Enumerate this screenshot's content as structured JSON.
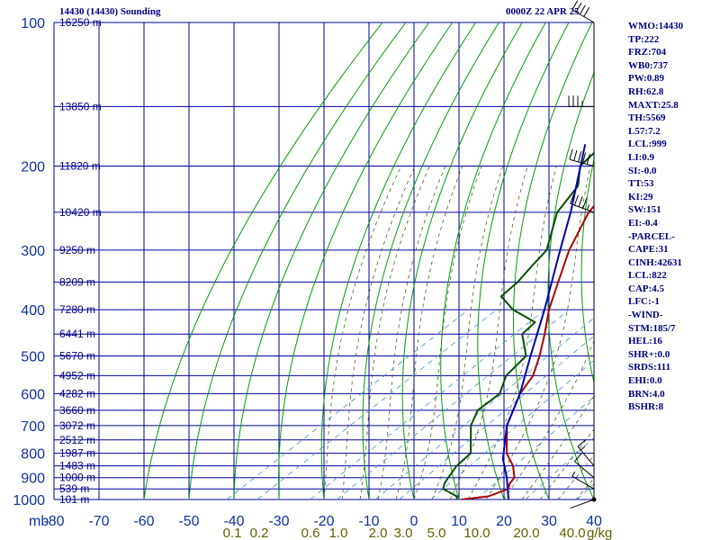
{
  "header": {
    "station_title": "14430 (14430) Sounding",
    "valid_time": "0000Z 22 APR 25"
  },
  "indices": [
    "WMO:14430",
    "TP:222",
    "FRZ:704",
    "WB0:737",
    "PW:0.89",
    "RH:62.8",
    "MAXT:25.8",
    "TH:5569",
    "L57:7.2",
    "LCL:999",
    "LI:0.9",
    "SI:-0.0",
    "TT:53",
    "KI:29",
    "SW:151",
    "EI:-0.4",
    "-PARCEL-",
    "CAPE:31",
    "CINH:42631",
    "LCL:822",
    "CAP:4.5",
    "LFC:-1",
    "-WIND-",
    "STM:185/7",
    "HEL:16",
    "SHR+:0.0",
    "SRDS:111",
    "EHI:0.0",
    "BRN:4.0",
    "BSHR:8"
  ],
  "chart_data": {
    "type": "line",
    "title": "14430 (14430) Sounding",
    "subtitle": "0000Z 22 APR 25",
    "xlabel": "",
    "ylabel": "mb",
    "pressure_axis": {
      "unit": "mb",
      "ticks": [
        100,
        200,
        300,
        400,
        500,
        600,
        700,
        800,
        900,
        1000
      ],
      "log_scale": true,
      "ylim": [
        100,
        1000
      ]
    },
    "temperature_axis": {
      "ticks": [
        -80,
        -70,
        -60,
        -50,
        -40,
        -30,
        -20,
        -10,
        0,
        10,
        20,
        30,
        40
      ],
      "xlim": [
        -80,
        40
      ]
    },
    "mixing_ratio_ticks": [
      "0.1",
      "0.2",
      "0.6",
      "1.0",
      "2.0",
      "3.0",
      "5.0",
      "10.0",
      "20.0",
      "40.0"
    ],
    "mixing_ratio_unit": "g/kg",
    "height_labels": [
      {
        "p": 100,
        "label": "16250 m"
      },
      {
        "p": 150,
        "label": "13850 m"
      },
      {
        "p": 200,
        "label": "11820 m"
      },
      {
        "p": 250,
        "label": "10420 m"
      },
      {
        "p": 300,
        "label": "9250 m"
      },
      {
        "p": 350,
        "label": "8209 m"
      },
      {
        "p": 400,
        "label": "7280 m"
      },
      {
        "p": 450,
        "label": "6441 m"
      },
      {
        "p": 500,
        "label": "5670 m"
      },
      {
        "p": 550,
        "label": "4952 m"
      },
      {
        "p": 600,
        "label": "4282 m"
      },
      {
        "p": 650,
        "label": "3660 m"
      },
      {
        "p": 700,
        "label": "3072 m"
      },
      {
        "p": 750,
        "label": "2512 m"
      },
      {
        "p": 800,
        "label": "1987 m"
      },
      {
        "p": 850,
        "label": "1483 m"
      },
      {
        "p": 900,
        "label": "1000 m"
      },
      {
        "p": 950,
        "label": "539 m"
      },
      {
        "p": 1000,
        "label": "101 m"
      }
    ],
    "series": [
      {
        "role": "temperature",
        "color": "#b00000",
        "points": [
          [
            1000,
            10.5
          ],
          [
            985,
            15.5
          ],
          [
            950,
            17.5
          ],
          [
            925,
            16
          ],
          [
            900,
            15.2
          ],
          [
            850,
            11
          ],
          [
            800,
            5.5
          ],
          [
            700,
            -3.5
          ],
          [
            600,
            -11
          ],
          [
            550,
            -14
          ],
          [
            500,
            -19
          ],
          [
            450,
            -25
          ],
          [
            400,
            -32
          ],
          [
            350,
            -39
          ],
          [
            300,
            -47
          ],
          [
            250,
            -55
          ],
          [
            225,
            -58
          ],
          [
            210,
            -58
          ],
          [
            200,
            -55
          ],
          [
            170,
            -56
          ],
          [
            150,
            -53
          ],
          [
            130,
            -52
          ],
          [
            100,
            -53
          ]
        ]
      },
      {
        "role": "dewpoint",
        "color": "#005000",
        "points": [
          [
            1000,
            9.5
          ],
          [
            985,
            8.5
          ],
          [
            950,
            3
          ],
          [
            925,
            1.5
          ],
          [
            900,
            0.5
          ],
          [
            850,
            -1.5
          ],
          [
            800,
            -2.5
          ],
          [
            700,
            -11.5
          ],
          [
            650,
            -15
          ],
          [
            600,
            -15.5
          ],
          [
            550,
            -20
          ],
          [
            500,
            -22
          ],
          [
            450,
            -30
          ],
          [
            425,
            -31
          ],
          [
            400,
            -40
          ],
          [
            375,
            -47
          ],
          [
            350,
            -48
          ],
          [
            325,
            -50
          ],
          [
            300,
            -52
          ],
          [
            250,
            -62
          ],
          [
            220,
            -66
          ],
          [
            200,
            -72
          ],
          [
            180,
            -74
          ],
          [
            160,
            -78
          ]
        ]
      },
      {
        "role": "parcel",
        "color": "#0000b0",
        "points": [
          [
            1000,
            21
          ],
          [
            900,
            13.5
          ],
          [
            822,
            6.5
          ],
          [
            700,
            -3.5
          ],
          [
            600,
            -11
          ],
          [
            500,
            -21
          ],
          [
            400,
            -33
          ],
          [
            300,
            -49
          ],
          [
            250,
            -59
          ],
          [
            180,
            -78
          ]
        ]
      }
    ],
    "wind_barbs": [
      {
        "p": 1000,
        "dir": 250,
        "spd": 3
      },
      {
        "p": 950,
        "dir": 300,
        "spd": 8
      },
      {
        "p": 900,
        "dir": 310,
        "spd": 12
      },
      {
        "p": 850,
        "dir": 320,
        "spd": 15
      },
      {
        "p": 250,
        "dir": 290,
        "spd": 45
      },
      {
        "p": 200,
        "dir": 285,
        "spd": 50
      },
      {
        "p": 150,
        "dir": 270,
        "spd": 35
      },
      {
        "p": 100,
        "dir": 300,
        "spd": 40
      }
    ],
    "grid": true
  }
}
